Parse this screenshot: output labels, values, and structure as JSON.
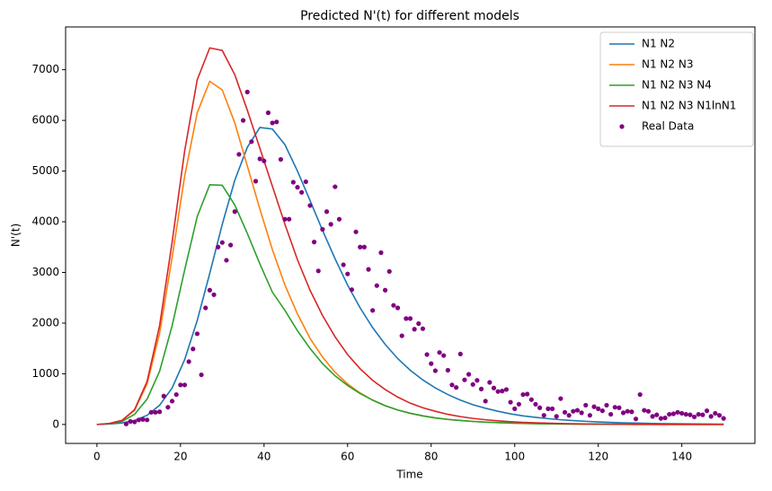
{
  "chart_data": {
    "type": "line",
    "title": "Predicted N'(t) for different models",
    "x_label": "Time",
    "y_label": "N'(t)",
    "xlim": [
      -7.5,
      157.5
    ],
    "ylim": [
      -374,
      7844
    ],
    "xticks": [
      0,
      20,
      40,
      60,
      80,
      100,
      120,
      140
    ],
    "yticks": [
      0,
      1000,
      2000,
      3000,
      4000,
      5000,
      6000,
      7000
    ],
    "grid": false,
    "legend": "upper right",
    "series": [
      {
        "name": "N1 N2",
        "color": "#1f77b4",
        "x": [
          0,
          3,
          6,
          9,
          12,
          15,
          18,
          21,
          24,
          27,
          30,
          33,
          36,
          39,
          42,
          45,
          48,
          51,
          54,
          57,
          60,
          63,
          66,
          69,
          72,
          75,
          78,
          81,
          84,
          87,
          90,
          93,
          96,
          99,
          102,
          105,
          108,
          111,
          114,
          117,
          120,
          123,
          126,
          129,
          132,
          135,
          138,
          141,
          144,
          147,
          150
        ],
        "values": [
          0,
          10,
          30,
          80,
          180,
          380,
          720,
          1280,
          2050,
          2980,
          3950,
          4820,
          5470,
          5860,
          5830,
          5520,
          5000,
          4420,
          3830,
          3270,
          2750,
          2300,
          1910,
          1580,
          1300,
          1070,
          880,
          720,
          590,
          480,
          390,
          320,
          260,
          210,
          170,
          140,
          115,
          93,
          76,
          62,
          50,
          41,
          33,
          27,
          22,
          18,
          15,
          12,
          10,
          8,
          6
        ]
      },
      {
        "name": "N1 N2 N3",
        "color": "#ff7f0e",
        "x": [
          0,
          3,
          6,
          9,
          12,
          15,
          18,
          21,
          24,
          27,
          30,
          33,
          36,
          39,
          42,
          45,
          48,
          51,
          54,
          57,
          60,
          63,
          66,
          69,
          72,
          75,
          78,
          81,
          84,
          87,
          90,
          93,
          96,
          99,
          102,
          105,
          108,
          111,
          114,
          117,
          120,
          123,
          126,
          129,
          132,
          135,
          138,
          141,
          144,
          147,
          150
        ],
        "values": [
          0,
          20,
          80,
          280,
          800,
          1800,
          3300,
          4900,
          6150,
          6770,
          6600,
          5950,
          5100,
          4250,
          3450,
          2750,
          2180,
          1700,
          1330,
          1030,
          800,
          620,
          480,
          370,
          285,
          220,
          170,
          130,
          100,
          78,
          60,
          46,
          36,
          28,
          21,
          16,
          13,
          10,
          8,
          6,
          5,
          4,
          3,
          2,
          2,
          1,
          1,
          1,
          1,
          0,
          0
        ]
      },
      {
        "name": "N1 N2 N3 N4",
        "color": "#2ca02c",
        "x": [
          0,
          3,
          6,
          9,
          12,
          15,
          18,
          21,
          24,
          27,
          30,
          33,
          36,
          39,
          42,
          45,
          48,
          51,
          54,
          57,
          60,
          63,
          66,
          69,
          72,
          75,
          78,
          81,
          84,
          87,
          90,
          93,
          96,
          99,
          102,
          105,
          108,
          111,
          114,
          117,
          120,
          123,
          126,
          129,
          132,
          135,
          138,
          141,
          144,
          147,
          150
        ],
        "values": [
          0,
          15,
          60,
          200,
          500,
          1050,
          1950,
          3050,
          4100,
          4730,
          4720,
          4330,
          3770,
          3170,
          2610,
          2250,
          1850,
          1500,
          1200,
          960,
          770,
          610,
          480,
          370,
          285,
          220,
          170,
          130,
          100,
          78,
          60,
          46,
          36,
          28,
          21,
          16,
          13,
          10,
          8,
          6,
          5,
          4,
          3,
          2,
          2,
          1,
          1,
          1,
          1,
          0,
          0
        ]
      },
      {
        "name": "N1 N2 N3 N1lnN1",
        "color": "#d62728",
        "x": [
          0,
          3,
          6,
          9,
          12,
          15,
          18,
          21,
          24,
          27,
          30,
          33,
          36,
          39,
          42,
          45,
          48,
          51,
          54,
          57,
          60,
          63,
          66,
          69,
          72,
          75,
          78,
          81,
          84,
          87,
          90,
          93,
          96,
          99,
          102,
          105,
          108,
          111,
          114,
          117,
          120,
          123,
          126,
          129,
          132,
          135,
          138,
          141,
          144,
          147,
          150
        ],
        "values": [
          0,
          20,
          80,
          290,
          850,
          1950,
          3600,
          5400,
          6800,
          7430,
          7380,
          6900,
          6200,
          5450,
          4700,
          3950,
          3250,
          2650,
          2150,
          1730,
          1380,
          1100,
          870,
          690,
          540,
          420,
          330,
          260,
          200,
          155,
          120,
          93,
          72,
          55,
          42,
          33,
          25,
          19,
          15,
          11,
          9,
          7,
          5,
          4,
          3,
          2,
          2,
          1,
          1,
          1,
          0
        ]
      },
      {
        "name": "Real Data",
        "color": "#800080",
        "type": "scatter",
        "x": [
          7,
          8,
          9,
          10,
          11,
          12,
          13,
          14,
          15,
          16,
          17,
          18,
          19,
          20,
          21,
          22,
          23,
          24,
          25,
          26,
          27,
          28,
          29,
          30,
          31,
          32,
          33,
          34,
          35,
          36,
          37,
          38,
          39,
          40,
          41,
          42,
          43,
          44,
          45,
          46,
          47,
          48,
          49,
          50,
          51,
          52,
          53,
          54,
          55,
          56,
          57,
          58,
          59,
          60,
          61,
          62,
          63,
          64,
          65,
          66,
          67,
          68,
          69,
          70,
          71,
          72,
          73,
          74,
          75,
          76,
          77,
          78,
          79,
          80,
          81,
          82,
          83,
          84,
          85,
          86,
          87,
          88,
          89,
          90,
          91,
          92,
          93,
          94,
          95,
          96,
          97,
          98,
          99,
          100,
          101,
          102,
          103,
          104,
          105,
          106,
          107,
          108,
          109,
          110,
          111,
          112,
          113,
          114,
          115,
          116,
          117,
          118,
          119,
          120,
          121,
          122,
          123,
          124,
          125,
          126,
          127,
          128,
          129,
          130,
          131,
          132,
          133,
          134,
          135,
          136,
          137,
          138,
          139,
          140,
          141,
          142,
          143,
          144,
          145,
          146,
          147,
          148,
          149,
          150
        ],
        "values": [
          10,
          60,
          50,
          90,
          100,
          90,
          240,
          240,
          250,
          560,
          340,
          460,
          590,
          780,
          780,
          1240,
          1490,
          1790,
          980,
          2300,
          2650,
          2560,
          3500,
          3590,
          3240,
          3540,
          4200,
          5330,
          6000,
          6560,
          5580,
          4800,
          5240,
          5200,
          6150,
          5950,
          5970,
          5230,
          4050,
          4050,
          4780,
          4680,
          4580,
          4790,
          4320,
          3600,
          3030,
          3850,
          4200,
          3950,
          4690,
          4050,
          3150,
          2970,
          2660,
          3800,
          3500,
          3500,
          3060,
          2250,
          2740,
          3390,
          2650,
          3020,
          2350,
          2300,
          1750,
          2090,
          2090,
          1880,
          1990,
          1890,
          1380,
          1200,
          1060,
          1420,
          1360,
          1070,
          780,
          730,
          1390,
          880,
          990,
          790,
          870,
          700,
          460,
          830,
          720,
          650,
          660,
          690,
          440,
          310,
          400,
          590,
          600,
          490,
          400,
          330,
          180,
          310,
          310,
          160,
          510,
          240,
          180,
          260,
          280,
          230,
          380,
          180,
          350,
          310,
          270,
          380,
          200,
          340,
          330,
          230,
          260,
          250,
          110,
          590,
          280,
          260,
          160,
          190,
          120,
          130,
          200,
          210,
          240,
          220,
          200,
          190,
          150,
          200,
          190,
          270,
          160,
          220,
          180,
          120
        ]
      }
    ]
  }
}
